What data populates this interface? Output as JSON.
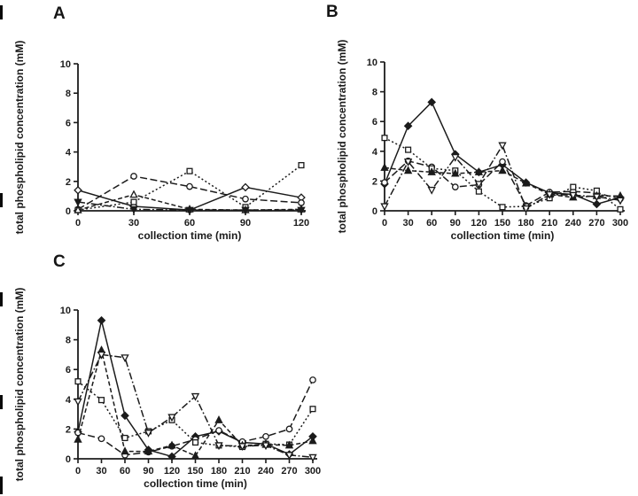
{
  "figure": {
    "background": "#ffffff",
    "ink_color": "#1b1b1b",
    "xlabel": "collection time (min)",
    "ylabel": "total phospholipid concentration (mM)"
  },
  "chart_data": [
    {
      "type": "line",
      "panel_label": "A",
      "title": "",
      "xlabel": "collection time (min)",
      "ylabel": "total phospholipid concentration (mM)",
      "x": [
        0,
        30,
        60,
        90,
        120
      ],
      "xlim": [
        0,
        120
      ],
      "ylim": [
        0,
        10
      ],
      "xticks": [
        0,
        30,
        60,
        90,
        120
      ],
      "yticks": [
        0,
        2,
        4,
        6,
        8,
        10
      ],
      "grid": false,
      "legend": "none",
      "series": [
        {
          "name": "diamond-solid",
          "marker": "diamond",
          "marker_fill": "open",
          "linestyle": "solid",
          "values": [
            1.4,
            0.3,
            0.05,
            1.6,
            0.9
          ]
        },
        {
          "name": "circle-dashed",
          "marker": "circle",
          "marker_fill": "open",
          "linestyle": "dash",
          "values": [
            0.1,
            2.35,
            1.65,
            0.8,
            0.55
          ]
        },
        {
          "name": "square-dotted",
          "marker": "square",
          "marker_fill": "open",
          "linestyle": "dot",
          "values": [
            0.05,
            0.6,
            2.7,
            0.25,
            3.1
          ]
        },
        {
          "name": "triangle-dashed",
          "marker": "triangle-up",
          "marker_fill": "open",
          "linestyle": "meddash",
          "values": [
            0.05,
            1.1,
            0.1,
            0.05,
            0.1
          ]
        },
        {
          "name": "downtriangle-dashdot",
          "marker": "triangle-down",
          "marker_fill": "filled",
          "linestyle": "dashdot",
          "values": [
            0.6,
            0.1,
            0.05,
            0.05,
            0.05
          ]
        }
      ]
    },
    {
      "type": "line",
      "panel_label": "B",
      "title": "",
      "xlabel": "collection time (min)",
      "ylabel": "total phospholipid concentration (mM)",
      "x": [
        0,
        30,
        60,
        90,
        120,
        150,
        180,
        210,
        240,
        270,
        300
      ],
      "xlim": [
        0,
        300
      ],
      "ylim": [
        0,
        10
      ],
      "xticks": [
        0,
        30,
        60,
        90,
        120,
        150,
        180,
        210,
        240,
        270,
        300
      ],
      "yticks": [
        0,
        2,
        4,
        6,
        8,
        10
      ],
      "grid": false,
      "legend": "none",
      "series": [
        {
          "name": "diamond-solid",
          "marker": "diamond",
          "marker_fill": "filled",
          "linestyle": "solid",
          "values": [
            1.8,
            5.7,
            7.3,
            3.8,
            2.6,
            3.1,
            1.9,
            1.2,
            1.1,
            0.45,
            0.9
          ]
        },
        {
          "name": "circle-dashed",
          "marker": "circle",
          "marker_fill": "open",
          "linestyle": "dash",
          "values": [
            1.9,
            3.35,
            2.95,
            1.6,
            1.75,
            3.3,
            0.35,
            1.25,
            1.3,
            1.2,
            0.8
          ]
        },
        {
          "name": "square-dotted",
          "marker": "square",
          "marker_fill": "open",
          "linestyle": "dot",
          "values": [
            4.9,
            4.1,
            2.85,
            2.7,
            1.3,
            0.25,
            0.3,
            0.85,
            1.6,
            1.35,
            0.1
          ]
        },
        {
          "name": "triangle-dashed",
          "marker": "triangle-up",
          "marker_fill": "filled",
          "linestyle": "meddash",
          "values": [
            2.9,
            2.7,
            2.6,
            2.5,
            2.6,
            2.7,
            1.85,
            1.1,
            0.9,
            1.0,
            1.0
          ]
        },
        {
          "name": "downtriangle-dashdot",
          "marker": "triangle-down",
          "marker_fill": "open",
          "linestyle": "dashdot",
          "values": [
            0.3,
            3.3,
            1.4,
            3.6,
            1.8,
            4.4,
            0.15,
            1.1,
            1.05,
            0.95,
            0.7
          ]
        }
      ]
    },
    {
      "type": "line",
      "panel_label": "C",
      "title": "",
      "xlabel": "collection time (min)",
      "ylabel": "total phospholipid concentration (mM)",
      "x": [
        0,
        30,
        60,
        90,
        120,
        150,
        180,
        210,
        240,
        270,
        300
      ],
      "xlim": [
        0,
        300
      ],
      "ylim": [
        0,
        10
      ],
      "xticks": [
        0,
        30,
        60,
        90,
        120,
        150,
        180,
        210,
        240,
        270,
        300
      ],
      "yticks": [
        0,
        2,
        4,
        6,
        8,
        10
      ],
      "grid": false,
      "legend": "none",
      "series": [
        {
          "name": "diamond-solid",
          "marker": "diamond",
          "marker_fill": "filled",
          "linestyle": "solid",
          "values": [
            1.8,
            9.3,
            2.9,
            0.6,
            0.15,
            1.5,
            1.85,
            1.1,
            1.0,
            0.3,
            1.5
          ]
        },
        {
          "name": "circle-dashed",
          "marker": "circle",
          "marker_fill": "open",
          "linestyle": "dash",
          "values": [
            1.75,
            1.35,
            0.25,
            0.45,
            0.85,
            1.3,
            1.9,
            1.15,
            1.5,
            2.0,
            5.3
          ]
        },
        {
          "name": "square-dotted",
          "marker": "square",
          "marker_fill": "open",
          "linestyle": "dot",
          "values": [
            5.2,
            3.95,
            1.4,
            1.85,
            2.6,
            1.1,
            0.9,
            0.8,
            1.0,
            0.95,
            3.35
          ]
        },
        {
          "name": "triangle-dashed",
          "marker": "triangle-up",
          "marker_fill": "filled",
          "linestyle": "meddash",
          "values": [
            1.3,
            7.3,
            0.5,
            0.5,
            0.9,
            0.2,
            2.6,
            0.9,
            0.95,
            0.9,
            1.2
          ]
        },
        {
          "name": "downtriangle-dashdot",
          "marker": "triangle-down",
          "marker_fill": "open",
          "linestyle": "dashdot",
          "values": [
            3.85,
            7.0,
            6.8,
            1.75,
            2.8,
            4.2,
            0.9,
            0.85,
            0.9,
            0.25,
            0.1
          ]
        }
      ]
    }
  ]
}
